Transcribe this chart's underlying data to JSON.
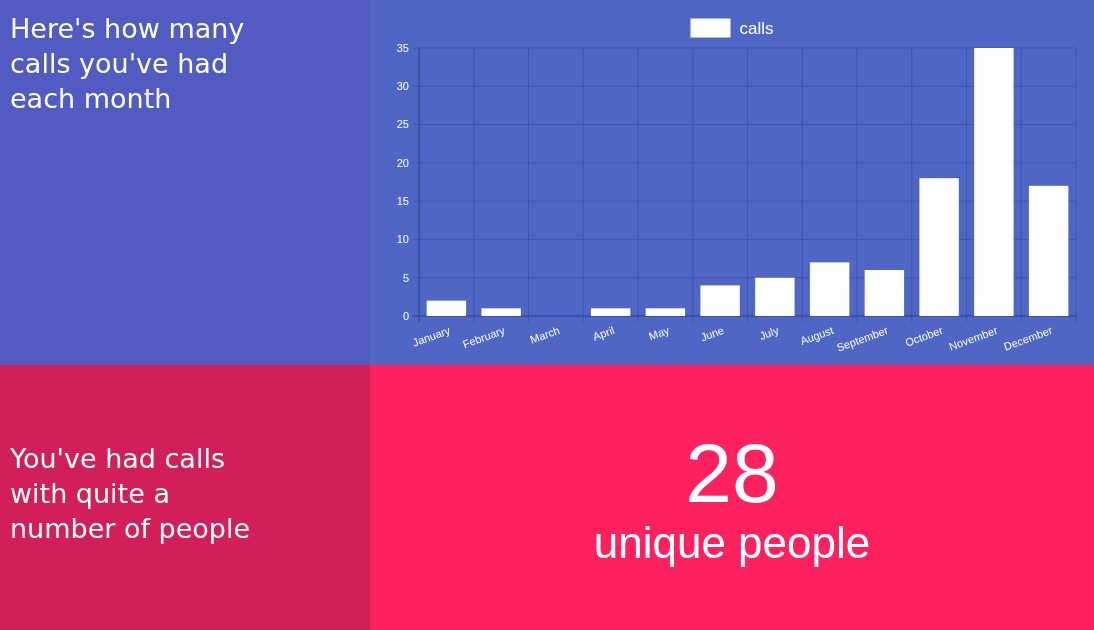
{
  "chart_data": [
    {
      "type": "bar",
      "title": "Here's how many calls you've had each month",
      "categories": [
        "January",
        "February",
        "March",
        "April",
        "May",
        "June",
        "July",
        "August",
        "September",
        "October",
        "November",
        "December"
      ],
      "series": [
        {
          "name": "calls",
          "color": "#ffffff",
          "values": [
            2,
            1,
            0,
            1,
            1,
            4,
            5,
            7,
            6,
            18,
            35,
            17
          ]
        }
      ],
      "ylim": [
        0,
        35
      ],
      "yticks": [
        0,
        5,
        10,
        15,
        20,
        25,
        30,
        35
      ],
      "grid": true,
      "legend": "top"
    },
    {
      "type": "other",
      "title": "You've had calls with quite a number of people",
      "annotations": [
        "28",
        "unique people"
      ]
    }
  ]
}
